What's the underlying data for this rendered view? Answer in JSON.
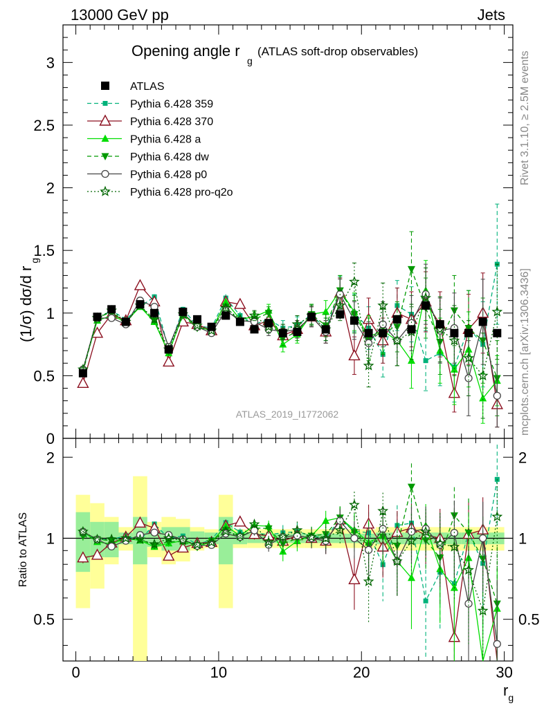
{
  "chart_data": [
    {
      "type": "line",
      "header_left": "13000 GeV pp",
      "header_right": "Jets",
      "title_main": "Opening angle r",
      "title_sub": "g",
      "title_extra": "(ATLAS soft-drop observables)",
      "ylabel": "(1/σ) dσ/d r",
      "ylabel_sub": "g",
      "ylim": [
        0,
        3.3
      ],
      "yticks": [
        0,
        0.5,
        1,
        1.5,
        2,
        2.5,
        3
      ],
      "ytick_labels": [
        "0",
        "0.5",
        "1",
        "1.5",
        "2",
        "2.5",
        "3"
      ],
      "analysis_id": "ATLAS_2019_I1772062",
      "side_note_1": "Rivet 3.1.10, ≥ 2.5M events",
      "side_note_2": "mcplots.cern.ch [arXiv:1306.3436]",
      "x": [
        0.5,
        1.5,
        2.5,
        3.5,
        4.5,
        5.5,
        6.5,
        7.5,
        8.5,
        9.5,
        10.5,
        11.5,
        12.5,
        13.5,
        14.5,
        15.5,
        16.5,
        17.5,
        18.5,
        19.5,
        20.5,
        21.5,
        22.5,
        23.5,
        24.5,
        25.5,
        26.5,
        27.5,
        28.5,
        29.5
      ],
      "series": [
        {
          "name": "ATLAS",
          "color": "#000000",
          "marker": "square",
          "dash": "none",
          "values": [
            0.52,
            0.97,
            1.03,
            0.93,
            1.07,
            1.0,
            0.71,
            1.01,
            0.95,
            0.89,
            0.98,
            0.93,
            0.87,
            0.92,
            0.84,
            0.85,
            0.97,
            0.87,
            0.99,
            0.94,
            0.84,
            0.84,
            0.95,
            0.87,
            1.06,
            0.91,
            0.84,
            0.84,
            0.93,
            0.84
          ],
          "errors": [
            0.01,
            0.01,
            0.01,
            0.01,
            0.01,
            0.01,
            0.01,
            0.01,
            0.01,
            0.01,
            0.01,
            0.01,
            0.01,
            0.01,
            0.01,
            0.01,
            0.01,
            0.01,
            0.01,
            0.01,
            0.01,
            0.01,
            0.01,
            0.01,
            0.01,
            0.01,
            0.01,
            0.01,
            0.01,
            0.01
          ]
        },
        {
          "name": "Pythia 6.428 359",
          "color": "#00b27a",
          "marker": "small-square",
          "dash": "dashed",
          "values": [
            0.54,
            0.96,
            1.02,
            0.95,
            1.05,
            1.13,
            0.71,
            1.03,
            0.9,
            0.88,
            1.12,
            0.98,
            0.91,
            0.95,
            0.88,
            0.9,
            0.99,
            0.87,
            1.17,
            1.0,
            0.88,
            0.67,
            1.06,
            0.99,
            0.62,
            0.68,
            0.57,
            0.88,
            0.75,
            1.39
          ],
          "errors": [
            0.02,
            0.02,
            0.02,
            0.02,
            0.02,
            0.02,
            0.02,
            0.02,
            0.02,
            0.02,
            0.03,
            0.03,
            0.04,
            0.05,
            0.06,
            0.07,
            0.08,
            0.09,
            0.12,
            0.15,
            0.17,
            0.18,
            0.2,
            0.22,
            0.24,
            0.26,
            0.28,
            0.3,
            0.34,
            0.48
          ]
        },
        {
          "name": "Pythia 6.428 370",
          "color": "#8b0f1f",
          "marker": "open-triangle",
          "dash": "none",
          "values": [
            0.44,
            0.84,
            0.99,
            0.94,
            1.22,
            1.09,
            0.61,
            0.93,
            0.91,
            0.86,
            1.09,
            1.07,
            0.9,
            0.94,
            0.82,
            0.87,
            0.97,
            0.85,
            1.16,
            0.66,
            0.95,
            0.78,
            1.0,
            0.95,
            1.09,
            0.91,
            0.36,
            0.87,
            1.0,
            0.27
          ],
          "errors": [
            0.02,
            0.02,
            0.02,
            0.02,
            0.02,
            0.02,
            0.02,
            0.02,
            0.02,
            0.02,
            0.03,
            0.03,
            0.04,
            0.05,
            0.06,
            0.07,
            0.08,
            0.09,
            0.12,
            0.15,
            0.17,
            0.18,
            0.2,
            0.22,
            0.24,
            0.26,
            0.15,
            0.28,
            0.32,
            0.18
          ]
        },
        {
          "name": "Pythia 6.428 a",
          "color": "#00dd00",
          "marker": "triangle",
          "dash": "none",
          "values": [
            0.55,
            0.94,
            0.98,
            0.93,
            1.05,
            0.93,
            0.68,
            0.99,
            0.89,
            0.86,
            1.09,
            0.95,
            0.97,
            1.02,
            0.75,
            0.83,
            0.99,
            1.01,
            1.18,
            1.01,
            0.81,
            0.86,
            0.78,
            0.62,
            1.18,
            0.7,
            0.55,
            0.71,
            0.32,
            0.46
          ],
          "errors": [
            0.02,
            0.02,
            0.02,
            0.02,
            0.02,
            0.02,
            0.02,
            0.02,
            0.02,
            0.02,
            0.03,
            0.03,
            0.04,
            0.05,
            0.06,
            0.07,
            0.08,
            0.09,
            0.12,
            0.15,
            0.17,
            0.18,
            0.2,
            0.22,
            0.24,
            0.26,
            0.28,
            0.3,
            0.2,
            0.2
          ]
        },
        {
          "name": "Pythia 6.428 dw",
          "color": "#009900",
          "marker": "down-triangle",
          "dash": "dashed",
          "values": [
            0.53,
            0.96,
            1.01,
            0.92,
            1.06,
            0.94,
            0.69,
            0.98,
            0.88,
            0.87,
            1.05,
            0.93,
            0.95,
            1.0,
            0.8,
            0.85,
            0.99,
            0.9,
            1.18,
            0.99,
            0.79,
            0.85,
            0.89,
            1.35,
            1.04,
            0.77,
            1.02,
            0.88,
            0.78,
            0.48
          ],
          "errors": [
            0.02,
            0.02,
            0.02,
            0.02,
            0.02,
            0.02,
            0.02,
            0.02,
            0.02,
            0.02,
            0.03,
            0.03,
            0.04,
            0.05,
            0.06,
            0.07,
            0.08,
            0.09,
            0.12,
            0.15,
            0.17,
            0.18,
            0.2,
            0.3,
            0.24,
            0.26,
            0.28,
            0.3,
            0.34,
            0.3
          ]
        },
        {
          "name": "Pythia 6.428 p0",
          "color": "#444444",
          "marker": "open-circle",
          "dash": "none",
          "values": [
            0.55,
            0.96,
            0.96,
            0.91,
            1.1,
            1.05,
            0.73,
            1.0,
            0.89,
            0.84,
            1.02,
            0.94,
            0.93,
            0.87,
            0.85,
            0.87,
            0.97,
            0.85,
            1.15,
            0.94,
            0.76,
            0.91,
            0.78,
            0.92,
            1.15,
            0.86,
            0.88,
            0.48,
            0.93,
            0.34
          ],
          "errors": [
            0.02,
            0.02,
            0.02,
            0.02,
            0.02,
            0.02,
            0.02,
            0.02,
            0.02,
            0.02,
            0.03,
            0.03,
            0.04,
            0.05,
            0.06,
            0.07,
            0.08,
            0.09,
            0.12,
            0.15,
            0.17,
            0.18,
            0.2,
            0.22,
            0.24,
            0.26,
            0.28,
            0.3,
            0.34,
            0.25
          ]
        },
        {
          "name": "Pythia 6.428 pro-q2o",
          "color": "#006600",
          "marker": "star",
          "dash": "dotted",
          "values": [
            0.55,
            0.96,
            1.02,
            0.93,
            1.06,
            0.95,
            0.71,
            0.99,
            0.9,
            0.86,
            1.04,
            0.95,
            0.98,
            0.89,
            0.85,
            0.91,
            0.98,
            0.87,
            1.06,
            1.25,
            0.58,
            1.06,
            0.78,
            0.85,
            1.12,
            0.87,
            0.78,
            0.64,
            0.5,
            1.01
          ],
          "errors": [
            0.02,
            0.02,
            0.02,
            0.02,
            0.02,
            0.02,
            0.02,
            0.02,
            0.02,
            0.02,
            0.03,
            0.03,
            0.04,
            0.05,
            0.06,
            0.07,
            0.08,
            0.09,
            0.12,
            0.15,
            0.17,
            0.18,
            0.2,
            0.22,
            0.24,
            0.26,
            0.28,
            0.3,
            0.34,
            0.38
          ]
        }
      ]
    },
    {
      "type": "line",
      "ylabel": "Ratio to ATLAS",
      "xlabel": "r",
      "xlabel_sub": "g",
      "xlim": [
        -0.9,
        30.6
      ],
      "ylim": [
        0.35,
        2.35
      ],
      "xticks": [
        0,
        10,
        20,
        30
      ],
      "xtick_labels": [
        "0",
        "10",
        "20",
        "30"
      ],
      "yticks": [
        0.5,
        1,
        2
      ],
      "ytick_labels": [
        "0.5",
        "1",
        "2"
      ],
      "band_stat": [
        0.25,
        0.15,
        0.15,
        0.05,
        0.2,
        0.07,
        0.1,
        0.1,
        0.06,
        0.05,
        0.2,
        0.05,
        0.04,
        0.04,
        0.04,
        0.04,
        0.04,
        0.04,
        0.04,
        0.04,
        0.04,
        0.05,
        0.05,
        0.05,
        0.05,
        0.05,
        0.05,
        0.05,
        0.05,
        0.05
      ],
      "band_total": [
        0.45,
        0.35,
        0.2,
        0.1,
        0.7,
        0.15,
        0.2,
        0.18,
        0.1,
        0.08,
        0.45,
        0.08,
        0.08,
        0.08,
        0.08,
        0.08,
        0.08,
        0.08,
        0.08,
        0.08,
        0.08,
        0.1,
        0.1,
        0.1,
        0.1,
        0.1,
        0.1,
        0.1,
        0.1,
        0.1
      ]
    }
  ]
}
